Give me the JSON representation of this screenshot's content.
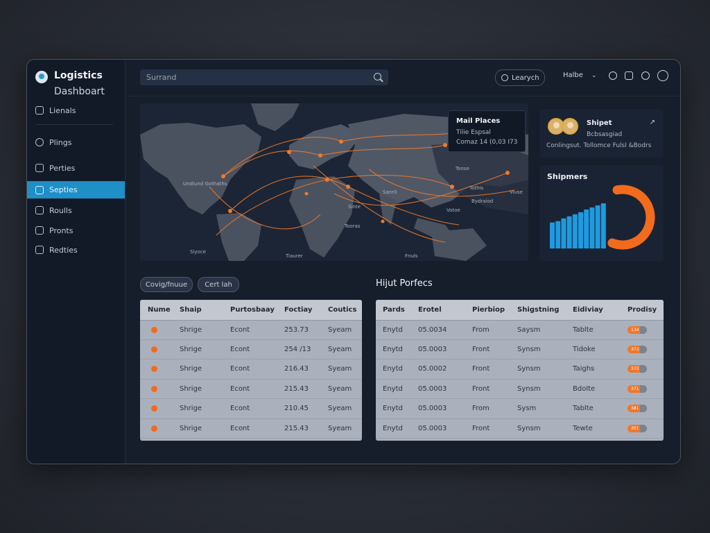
{
  "brand": {
    "title": "Logistics",
    "subtitle": "Dashboart"
  },
  "sidebar": {
    "items": [
      {
        "label": "Lienals",
        "icon": "clipboard-icon",
        "active": false
      },
      {
        "label": "Plings",
        "icon": "compass-icon",
        "active": false
      },
      {
        "label": "Perties",
        "icon": "box-icon",
        "active": false
      },
      {
        "label": "Septies",
        "icon": "file-icon",
        "active": true
      },
      {
        "label": "Roulls",
        "icon": "lock-icon",
        "active": false
      },
      {
        "label": "Pronts",
        "icon": "clipboard-icon",
        "active": false
      },
      {
        "label": "Redties",
        "icon": "pen-icon",
        "active": false
      }
    ]
  },
  "topbar": {
    "search_placeholder": "Surrand",
    "search_button": "Learych",
    "user_name": "Halbe",
    "icons": [
      "bell-icon",
      "shield-icon",
      "chat-icon",
      "user-icon"
    ]
  },
  "map": {
    "tooltip": {
      "title": "Mail Places",
      "line1": "Tilie Espsal",
      "line2": "Comaz 14 (0,03 I73"
    },
    "labels": [
      "Undlund Gothaths",
      "Tonse",
      "Tothis",
      "Sanrit",
      "Votoe",
      "Viuse",
      "Bydraiod",
      "Tooras",
      "Siyoce",
      "Tiaurer",
      "Fnuls",
      "Sinte"
    ]
  },
  "shipper_card": {
    "title": "Shipet",
    "subtitle": "Bcbsasgiad",
    "footer": "Conlingsut. Tollomce Fulsl &Bodrs"
  },
  "shipments_card": {
    "title": "Shipmers",
    "accent": "#f26b1d",
    "bar_color": "#1e9be0"
  },
  "chart_data": {
    "type": "bar",
    "title": "Shipmers",
    "values": [
      38,
      40,
      44,
      47,
      50,
      53,
      57,
      60,
      63,
      66
    ],
    "ring_fraction": 0.45
  },
  "filters": [
    {
      "label": "Covig/fnuue"
    },
    {
      "label": "Cert lah"
    }
  ],
  "section_title": "Hijut Porfecs",
  "left_table": {
    "headers": [
      "Nume",
      "Shaip",
      "Purtosbaay",
      "Foctiay",
      "Coutics"
    ],
    "rows": [
      [
        "",
        "Shrige",
        "Econt",
        "253.73",
        "Syeam"
      ],
      [
        "",
        "Shrige",
        "Econt",
        "254 /13",
        "Syeam"
      ],
      [
        "",
        "Shrige",
        "Econt",
        "216.43",
        "Syeam"
      ],
      [
        "",
        "Shrige",
        "Econt",
        "215.43",
        "Syeam"
      ],
      [
        "",
        "Shrige",
        "Econt",
        "210.45",
        "Syeam"
      ],
      [
        "",
        "Shrige",
        "Econt",
        "215.43",
        "Syeam"
      ]
    ]
  },
  "right_table": {
    "headers": [
      "Pards",
      "Erotel",
      "Pierbiop",
      "Shigstning",
      "Eidiviay",
      "Prodisy"
    ],
    "rows": [
      [
        "Enytd",
        "05.0034",
        "From",
        "Saysm",
        "Tablte",
        "134"
      ],
      [
        "Enytd",
        "05.0003",
        "Front",
        "Synsm",
        "Tidoke",
        "373"
      ],
      [
        "Enytd",
        "05.0002",
        "Front",
        "Synsm",
        "Taighs",
        "373"
      ],
      [
        "Enytd",
        "05.0003",
        "Front",
        "Synsm",
        "Bdolte",
        "371"
      ],
      [
        "Enytd",
        "05.0003",
        "From",
        "Sysm",
        "Tablte",
        "381"
      ],
      [
        "Enytd",
        "05.0003",
        "Front",
        "Synsm",
        "Tewte",
        "301"
      ]
    ]
  }
}
